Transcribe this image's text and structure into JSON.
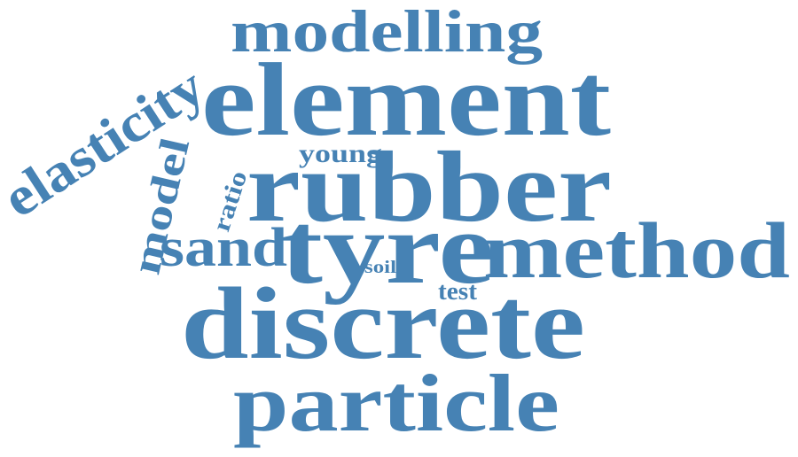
{
  "word_cloud": {
    "color": "#4682b4",
    "words": [
      {
        "key": "modelling",
        "text": "modelling"
      },
      {
        "key": "element",
        "text": "element"
      },
      {
        "key": "elasticity",
        "text": "elasticity"
      },
      {
        "key": "young",
        "text": "young"
      },
      {
        "key": "model",
        "text": "model"
      },
      {
        "key": "rubber",
        "text": "rubber"
      },
      {
        "key": "ratio",
        "text": "ratio"
      },
      {
        "key": "sand",
        "text": "sand"
      },
      {
        "key": "tyre",
        "text": "tyre"
      },
      {
        "key": "method",
        "text": "method"
      },
      {
        "key": "soil",
        "text": "soil"
      },
      {
        "key": "test",
        "text": "test"
      },
      {
        "key": "discrete",
        "text": "discrete"
      },
      {
        "key": "particle",
        "text": "particle"
      }
    ]
  }
}
